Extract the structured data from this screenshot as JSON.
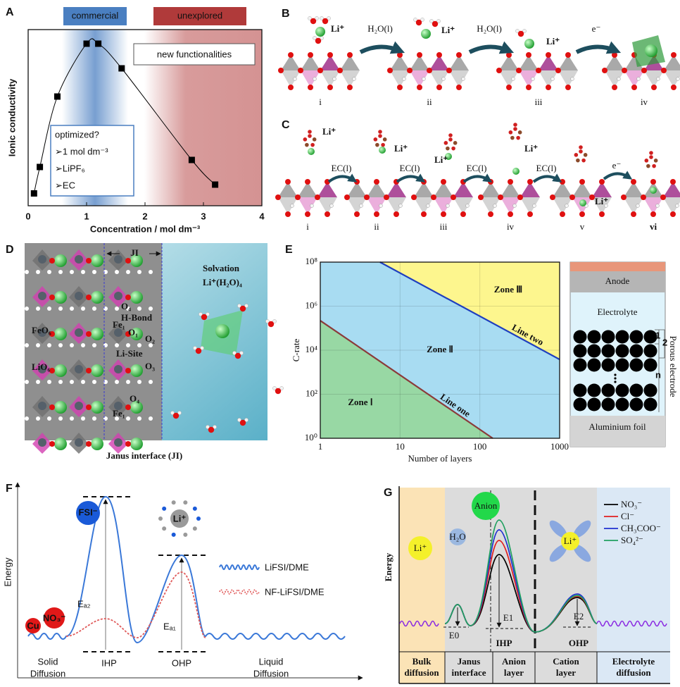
{
  "panel_labels": [
    "A",
    "B",
    "C",
    "D",
    "E",
    "F",
    "G"
  ],
  "chart_data": [
    {
      "type": "line",
      "xlabel": "Concentration / mol dm⁻³",
      "ylabel": "Ionic conductivity",
      "x": [
        0.1,
        0.2,
        0.5,
        1.0,
        1.2,
        1.6,
        2.8,
        3.2
      ],
      "values": [
        0.07,
        0.22,
        0.62,
        0.92,
        0.92,
        0.78,
        0.26,
        0.12
      ],
      "color": "#000000",
      "xlim": [
        0,
        4
      ],
      "xticks": [
        0,
        1,
        2,
        3,
        4
      ],
      "ylim": [
        0,
        1
      ],
      "annotations": [
        "commercial",
        "unexplored",
        "new functionalities",
        "optimized?",
        "➢1 mol dm⁻³",
        "➢LiPF₆",
        "➢EC"
      ]
    },
    {
      "type": "line",
      "xlabel": "Number of layers",
      "ylabel": "C-rate",
      "xscale": "log",
      "yscale": "log",
      "xlim": [
        1,
        1000
      ],
      "xticks": [
        1,
        10,
        100,
        1000
      ],
      "ylim": [
        1,
        100000000
      ],
      "yticks": [
        {
          "value": 1,
          "label": "10⁰"
        },
        {
          "value": 100,
          "label": "10²"
        },
        {
          "value": 10000,
          "label": "10⁴"
        },
        {
          "value": 1000000,
          "label": "10⁶"
        },
        {
          "value": 100000000,
          "label": "10⁸"
        }
      ],
      "grid": true,
      "series": [
        {
          "name": "Line one",
          "color": "#8b3a3a",
          "x": [
            1,
            145
          ],
          "values": [
            220000,
            1
          ]
        },
        {
          "name": "Line two",
          "color": "#1f3fbf",
          "x": [
            5.6,
            1000
          ],
          "values": [
            100000000,
            3800
          ]
        }
      ],
      "annotations": [
        "Zone Ⅰ",
        "Zone Ⅱ",
        "Zone Ⅲ"
      ]
    }
  ],
  "panel_b": {
    "ions": [
      "Li⁺",
      "Li⁺",
      "Li⁺"
    ],
    "steps": [
      "H₂O(l)",
      "H₂O(l)",
      "e⁻"
    ],
    "stages": [
      "i",
      "ii",
      "iii",
      "iv"
    ]
  },
  "panel_c": {
    "ions": [
      "Li⁺",
      "Li⁺",
      "Li⁺",
      "Li⁺",
      "Li⁺"
    ],
    "steps": [
      "EC(l)",
      "EC(l)",
      "EC(l)",
      "EC(l)",
      "e⁻"
    ],
    "stages": [
      "i",
      "ii",
      "iii",
      "iv",
      "v",
      "vi"
    ]
  },
  "panel_d": {
    "title": "JI",
    "solvation": "Solvation",
    "complex": "Li⁺(H₂O)₄",
    "labels": [
      "FeO₆",
      "LiO₆",
      "H-Bond",
      "Li-Site",
      "O₄",
      "Fe₁",
      "O₁",
      "O₂",
      "O₃",
      "O₄",
      "Fe₁"
    ],
    "caption": "Janus interface (JI)"
  },
  "panel_e_cell": {
    "anode": "Anode",
    "electrolyte": "Electrolyte",
    "electrode": "Porous electrode",
    "layers": [
      "1",
      "2",
      "n"
    ],
    "foil": "Aluminium foil"
  },
  "panel_f": {
    "ylabel": "Energy",
    "ions": [
      "FSI⁻",
      "Li⁺",
      "Cu",
      "NO₃⁻"
    ],
    "barriers": [
      "Eₐ₂",
      "Eₐ₁"
    ],
    "legend": [
      {
        "name": "LiFSI/DME",
        "color": "#3a78d8"
      },
      {
        "name": "NF-LiFSI/DME",
        "color": "#e05a5a"
      }
    ],
    "regions": [
      [
        "Solid",
        "Diffusion"
      ],
      [
        "IHP"
      ],
      [
        "OHP"
      ],
      [
        "Liquid",
        "Diffusion"
      ]
    ]
  },
  "panel_g": {
    "ylabel": "Energy",
    "species": [
      "Li⁺",
      "H₂O",
      "Anion",
      "Li⁺"
    ],
    "energies": [
      "E0",
      "E1",
      "E2"
    ],
    "planes": [
      "IHP",
      "OHP"
    ],
    "legend": [
      {
        "name": "NO₃⁻",
        "color": "#000000"
      },
      {
        "name": "Cl⁻",
        "color": "#e02020"
      },
      {
        "name": "CH₃COO⁻",
        "color": "#2030d0"
      },
      {
        "name": "SO₄²⁻",
        "color": "#20a060"
      }
    ],
    "regions": [
      [
        "Bulk",
        "diffusion"
      ],
      [
        "Janus",
        "interface"
      ],
      [
        "Anion",
        "layer"
      ],
      [
        "Cation",
        "layer"
      ],
      [
        "Electrolyte",
        "diffusion"
      ]
    ]
  }
}
